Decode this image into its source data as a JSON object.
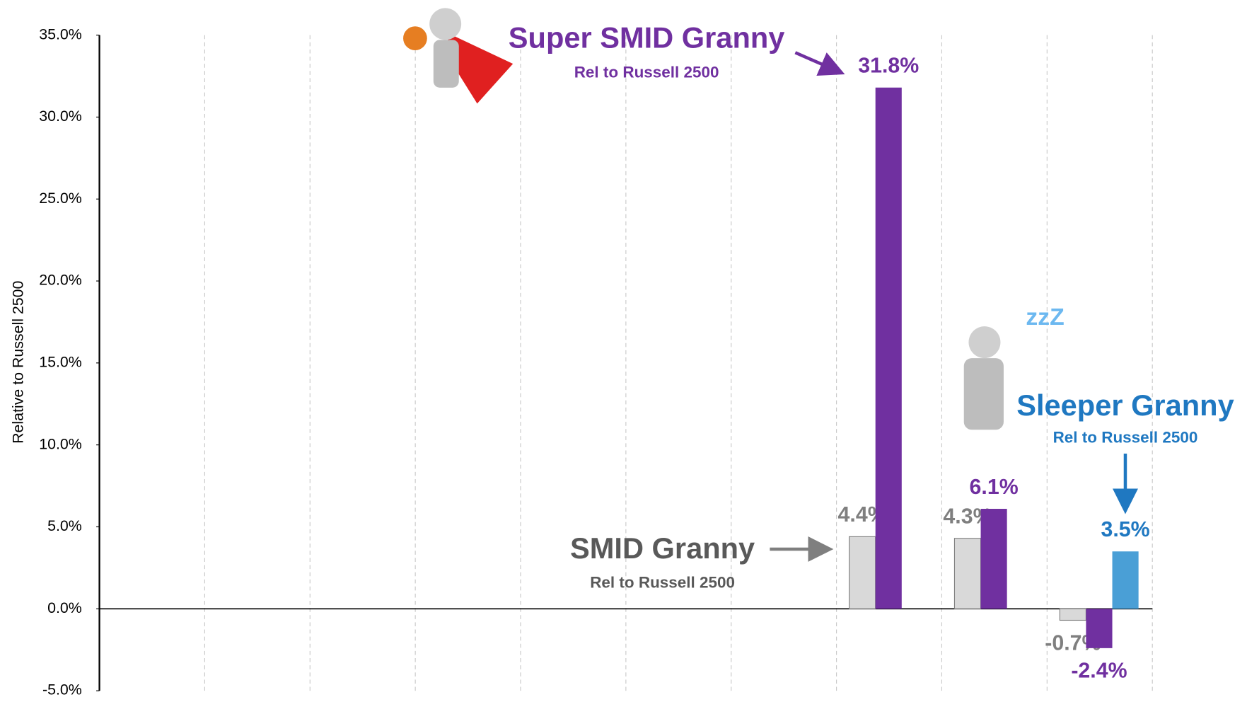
{
  "chart_data": {
    "type": "bar",
    "y_label": "Relative to Russell 2500",
    "categories": [
      null,
      null,
      null,
      null,
      null,
      null,
      null,
      null,
      null,
      null
    ],
    "series": [
      {
        "name": "SMID Granny",
        "note": "Rel to Russell 2500",
        "color": "#d9d9d9",
        "label_color": "#7f7f7f",
        "values": [
          null,
          null,
          null,
          null,
          null,
          null,
          null,
          4.4,
          4.3,
          -0.7
        ],
        "value_labels": [
          null,
          null,
          null,
          null,
          null,
          null,
          null,
          "4.4%",
          "4.3%",
          "-0.7%"
        ]
      },
      {
        "name": "Super SMID Granny",
        "note": "Rel to Russell 2500",
        "color": "#7030a0",
        "label_color": "#7030a0",
        "values": [
          null,
          null,
          null,
          null,
          null,
          null,
          null,
          31.8,
          6.1,
          -2.4
        ],
        "value_labels": [
          null,
          null,
          null,
          null,
          null,
          null,
          null,
          "31.8%",
          "6.1%",
          "-2.4%"
        ]
      },
      {
        "name": "Sleeper Granny",
        "note": "Rel to Russell 2500",
        "color": "#4a9fd6",
        "label_color": "#1f78c1",
        "values": [
          null,
          null,
          null,
          null,
          null,
          null,
          null,
          null,
          null,
          3.5
        ],
        "value_labels": [
          null,
          null,
          null,
          null,
          null,
          null,
          null,
          null,
          null,
          "3.5%"
        ]
      }
    ],
    "ylim": [
      -5,
      35
    ],
    "yticks": [
      {
        "value": -5,
        "label": "-5.0%"
      },
      {
        "value": 0,
        "label": "0.0%"
      },
      {
        "value": 5,
        "label": "5.0%"
      },
      {
        "value": 10,
        "label": "10.0%"
      },
      {
        "value": 15,
        "label": "15.0%"
      },
      {
        "value": 20,
        "label": "20.0%"
      },
      {
        "value": 25,
        "label": "25.0%"
      },
      {
        "value": 30,
        "label": "30.0%"
      },
      {
        "value": 35,
        "label": "35.0%"
      }
    ]
  }
}
